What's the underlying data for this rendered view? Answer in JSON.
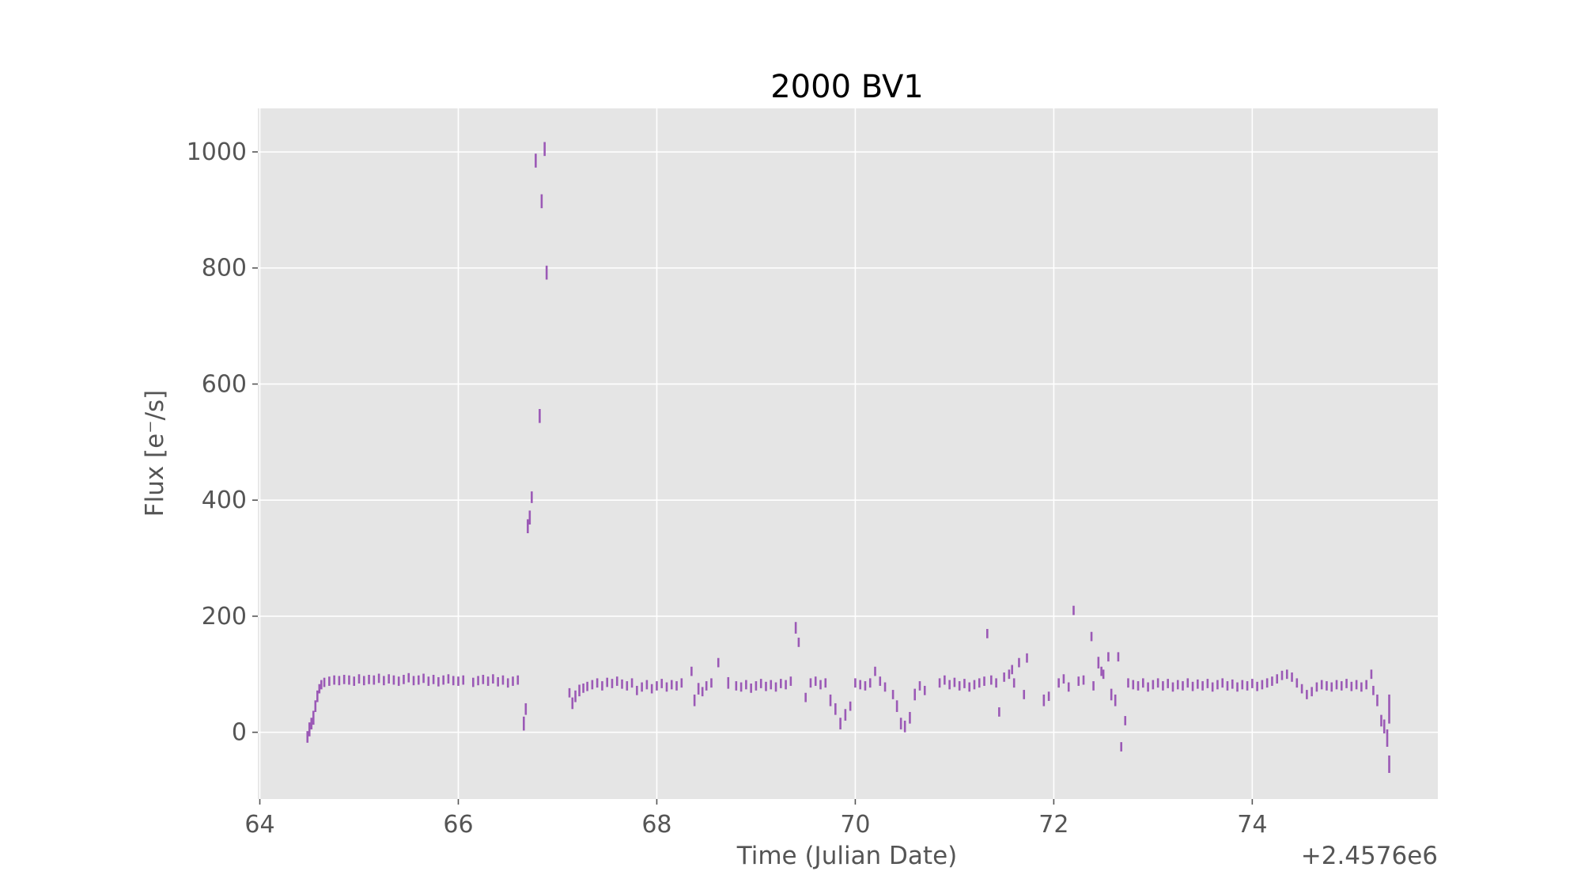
{
  "chart_data": {
    "type": "scatter",
    "title": "2000 BV1",
    "xlabel": "Time (Julian Date)",
    "ylabel": "Flux [e⁻/s]",
    "x_offset_label": "+2.4576e6",
    "xlim": [
      63.98,
      75.87
    ],
    "ylim": [
      -115,
      1075
    ],
    "xticks": [
      64,
      66,
      68,
      70,
      72,
      74
    ],
    "yticks": [
      0,
      200,
      400,
      600,
      800,
      1000
    ],
    "grid": true,
    "style": "errorbar",
    "colors": {
      "series": "#9b59b6",
      "plot_background": "#e5e5e5",
      "grid": "#ffffff",
      "tick_text": "#555555",
      "title_text": "#000000"
    },
    "series": [
      {
        "points": [
          [
            64.48,
            -8,
            10
          ],
          [
            64.5,
            5,
            12
          ],
          [
            64.52,
            15,
            10
          ],
          [
            64.54,
            25,
            12
          ],
          [
            64.56,
            45,
            10
          ],
          [
            64.58,
            62,
            10
          ],
          [
            64.6,
            75,
            8
          ],
          [
            64.62,
            82,
            8
          ],
          [
            64.65,
            86,
            8
          ],
          [
            64.7,
            88,
            8
          ],
          [
            64.75,
            90,
            8
          ],
          [
            64.8,
            89,
            8
          ],
          [
            64.85,
            91,
            8
          ],
          [
            64.9,
            90,
            8
          ],
          [
            64.95,
            88,
            8
          ],
          [
            65.0,
            92,
            8
          ],
          [
            65.05,
            89,
            8
          ],
          [
            65.1,
            91,
            8
          ],
          [
            65.15,
            90,
            8
          ],
          [
            65.2,
            93,
            8
          ],
          [
            65.25,
            89,
            8
          ],
          [
            65.3,
            92,
            8
          ],
          [
            65.35,
            90,
            8
          ],
          [
            65.4,
            88,
            8
          ],
          [
            65.45,
            91,
            8
          ],
          [
            65.5,
            94,
            8
          ],
          [
            65.55,
            89,
            8
          ],
          [
            65.6,
            90,
            8
          ],
          [
            65.65,
            93,
            8
          ],
          [
            65.7,
            88,
            8
          ],
          [
            65.75,
            91,
            8
          ],
          [
            65.8,
            87,
            8
          ],
          [
            65.85,
            90,
            8
          ],
          [
            65.9,
            92,
            8
          ],
          [
            65.95,
            89,
            8
          ],
          [
            66.0,
            88,
            8
          ],
          [
            66.05,
            90,
            8
          ],
          [
            66.15,
            86,
            8
          ],
          [
            66.2,
            89,
            8
          ],
          [
            66.25,
            91,
            8
          ],
          [
            66.3,
            88,
            8
          ],
          [
            66.35,
            92,
            8
          ],
          [
            66.4,
            87,
            8
          ],
          [
            66.45,
            90,
            8
          ],
          [
            66.5,
            85,
            8
          ],
          [
            66.55,
            88,
            8
          ],
          [
            66.6,
            90,
            8
          ],
          [
            66.66,
            15,
            12
          ],
          [
            66.68,
            40,
            10
          ],
          [
            66.7,
            355,
            12
          ],
          [
            66.72,
            370,
            12
          ],
          [
            66.74,
            405,
            10
          ],
          [
            66.78,
            985,
            12
          ],
          [
            66.82,
            545,
            12
          ],
          [
            66.84,
            915,
            12
          ],
          [
            66.87,
            1005,
            12
          ],
          [
            66.89,
            792,
            12
          ],
          [
            67.12,
            68,
            8
          ],
          [
            67.15,
            50,
            10
          ],
          [
            67.18,
            62,
            10
          ],
          [
            67.22,
            72,
            10
          ],
          [
            67.26,
            76,
            8
          ],
          [
            67.3,
            79,
            8
          ],
          [
            67.35,
            82,
            8
          ],
          [
            67.4,
            85,
            8
          ],
          [
            67.45,
            80,
            8
          ],
          [
            67.5,
            86,
            8
          ],
          [
            67.55,
            84,
            8
          ],
          [
            67.6,
            88,
            8
          ],
          [
            67.65,
            83,
            8
          ],
          [
            67.7,
            80,
            8
          ],
          [
            67.75,
            85,
            8
          ],
          [
            67.8,
            72,
            8
          ],
          [
            67.85,
            78,
            8
          ],
          [
            67.9,
            82,
            8
          ],
          [
            67.95,
            75,
            8
          ],
          [
            68.0,
            80,
            8
          ],
          [
            68.05,
            84,
            8
          ],
          [
            68.1,
            78,
            8
          ],
          [
            68.15,
            82,
            8
          ],
          [
            68.2,
            80,
            8
          ],
          [
            68.25,
            85,
            8
          ],
          [
            68.35,
            105,
            8
          ],
          [
            68.38,
            55,
            10
          ],
          [
            68.42,
            75,
            10
          ],
          [
            68.46,
            70,
            8
          ],
          [
            68.5,
            80,
            8
          ],
          [
            68.55,
            85,
            8
          ],
          [
            68.62,
            120,
            8
          ],
          [
            68.72,
            85,
            10
          ],
          [
            68.8,
            80,
            8
          ],
          [
            68.85,
            78,
            8
          ],
          [
            68.9,
            82,
            8
          ],
          [
            68.95,
            76,
            8
          ],
          [
            69.0,
            80,
            8
          ],
          [
            69.05,
            84,
            8
          ],
          [
            69.1,
            79,
            8
          ],
          [
            69.15,
            82,
            8
          ],
          [
            69.2,
            78,
            8
          ],
          [
            69.25,
            84,
            8
          ],
          [
            69.3,
            82,
            8
          ],
          [
            69.35,
            88,
            8
          ],
          [
            69.4,
            180,
            10
          ],
          [
            69.43,
            155,
            8
          ],
          [
            69.5,
            60,
            8
          ],
          [
            69.55,
            85,
            8
          ],
          [
            69.6,
            88,
            8
          ],
          [
            69.65,
            82,
            8
          ],
          [
            69.7,
            85,
            8
          ],
          [
            69.75,
            55,
            10
          ],
          [
            69.8,
            40,
            10
          ],
          [
            69.85,
            15,
            10
          ],
          [
            69.9,
            30,
            10
          ],
          [
            69.95,
            45,
            8
          ],
          [
            70.0,
            85,
            8
          ],
          [
            70.05,
            82,
            8
          ],
          [
            70.1,
            80,
            8
          ],
          [
            70.15,
            85,
            8
          ],
          [
            70.2,
            105,
            8
          ],
          [
            70.25,
            88,
            8
          ],
          [
            70.3,
            78,
            8
          ],
          [
            70.38,
            65,
            8
          ],
          [
            70.42,
            45,
            10
          ],
          [
            70.46,
            15,
            10
          ],
          [
            70.5,
            10,
            10
          ],
          [
            70.55,
            25,
            10
          ],
          [
            70.6,
            65,
            10
          ],
          [
            70.65,
            80,
            8
          ],
          [
            70.7,
            72,
            8
          ],
          [
            70.85,
            85,
            8
          ],
          [
            70.9,
            90,
            8
          ],
          [
            70.95,
            82,
            8
          ],
          [
            71.0,
            86,
            8
          ],
          [
            71.05,
            80,
            8
          ],
          [
            71.1,
            84,
            8
          ],
          [
            71.15,
            78,
            8
          ],
          [
            71.2,
            82,
            8
          ],
          [
            71.25,
            85,
            8
          ],
          [
            71.3,
            88,
            8
          ],
          [
            71.33,
            170,
            8
          ],
          [
            71.37,
            90,
            8
          ],
          [
            71.42,
            85,
            8
          ],
          [
            71.45,
            35,
            8
          ],
          [
            71.5,
            95,
            8
          ],
          [
            71.55,
            100,
            8
          ],
          [
            71.58,
            108,
            8
          ],
          [
            71.6,
            85,
            8
          ],
          [
            71.65,
            120,
            8
          ],
          [
            71.7,
            65,
            8
          ],
          [
            71.73,
            128,
            8
          ],
          [
            71.9,
            55,
            10
          ],
          [
            71.95,
            62,
            8
          ],
          [
            72.05,
            85,
            8
          ],
          [
            72.1,
            92,
            8
          ],
          [
            72.15,
            78,
            8
          ],
          [
            72.2,
            210,
            8
          ],
          [
            72.25,
            88,
            8
          ],
          [
            72.3,
            90,
            8
          ],
          [
            72.38,
            165,
            8
          ],
          [
            72.4,
            80,
            8
          ],
          [
            72.45,
            120,
            10
          ],
          [
            72.48,
            105,
            8
          ],
          [
            72.5,
            100,
            8
          ],
          [
            72.55,
            130,
            8
          ],
          [
            72.58,
            65,
            10
          ],
          [
            72.62,
            55,
            10
          ],
          [
            72.65,
            130,
            8
          ],
          [
            72.68,
            -25,
            8
          ],
          [
            72.72,
            20,
            8
          ],
          [
            72.75,
            85,
            8
          ],
          [
            72.8,
            82,
            8
          ],
          [
            72.85,
            80,
            8
          ],
          [
            72.9,
            85,
            8
          ],
          [
            72.95,
            78,
            8
          ],
          [
            73.0,
            82,
            8
          ],
          [
            73.05,
            85,
            8
          ],
          [
            73.1,
            80,
            8
          ],
          [
            73.15,
            84,
            8
          ],
          [
            73.2,
            78,
            8
          ],
          [
            73.25,
            82,
            8
          ],
          [
            73.3,
            80,
            8
          ],
          [
            73.35,
            85,
            8
          ],
          [
            73.4,
            79,
            8
          ],
          [
            73.45,
            83,
            8
          ],
          [
            73.5,
            80,
            8
          ],
          [
            73.55,
            84,
            8
          ],
          [
            73.6,
            78,
            8
          ],
          [
            73.65,
            82,
            8
          ],
          [
            73.7,
            85,
            8
          ],
          [
            73.75,
            80,
            8
          ],
          [
            73.8,
            83,
            8
          ],
          [
            73.85,
            78,
            8
          ],
          [
            73.9,
            82,
            8
          ],
          [
            73.95,
            80,
            8
          ],
          [
            74.0,
            84,
            8
          ],
          [
            74.05,
            79,
            8
          ],
          [
            74.1,
            82,
            8
          ],
          [
            74.15,
            85,
            8
          ],
          [
            74.2,
            88,
            8
          ],
          [
            74.25,
            92,
            8
          ],
          [
            74.3,
            98,
            8
          ],
          [
            74.35,
            100,
            8
          ],
          [
            74.4,
            95,
            8
          ],
          [
            74.45,
            85,
            8
          ],
          [
            74.5,
            75,
            8
          ],
          [
            74.55,
            65,
            8
          ],
          [
            74.6,
            70,
            8
          ],
          [
            74.65,
            78,
            8
          ],
          [
            74.7,
            82,
            8
          ],
          [
            74.75,
            80,
            8
          ],
          [
            74.8,
            78,
            8
          ],
          [
            74.85,
            82,
            8
          ],
          [
            74.9,
            80,
            8
          ],
          [
            74.95,
            84,
            8
          ],
          [
            75.0,
            79,
            8
          ],
          [
            75.05,
            82,
            8
          ],
          [
            75.1,
            78,
            8
          ],
          [
            75.15,
            82,
            8
          ],
          [
            75.2,
            100,
            8
          ],
          [
            75.22,
            72,
            8
          ],
          [
            75.26,
            55,
            10
          ],
          [
            75.3,
            20,
            10
          ],
          [
            75.33,
            10,
            12
          ],
          [
            75.36,
            -10,
            15
          ],
          [
            75.38,
            -55,
            15
          ],
          [
            75.38,
            40,
            25
          ]
        ]
      }
    ]
  }
}
